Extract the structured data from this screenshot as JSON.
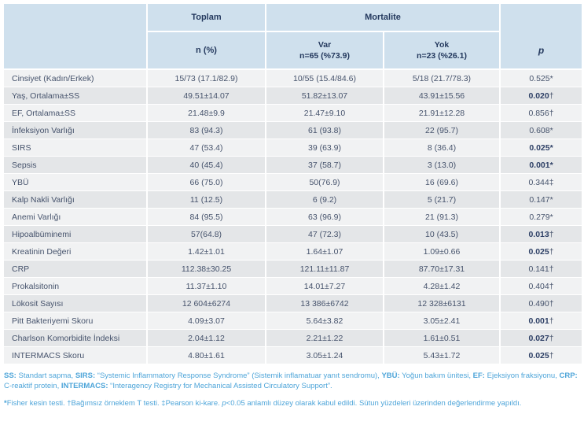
{
  "colors": {
    "header_bg": "#cfe0ed",
    "header_text": "#24395e",
    "body_text": "#46536c",
    "row_light": "#f1f2f3",
    "row_dark": "#e4e6e8",
    "footnote_blue": "#4ea5d9",
    "bold_value_text": "#2e4066"
  },
  "table": {
    "header": {
      "corner": "",
      "toplam": "Toplam",
      "mortalite": "Mortalite",
      "n_pct": "n (%)",
      "var_title": "Var",
      "var_sub": "n=65 (%73.9)",
      "yok_title": "Yok",
      "yok_sub": "n=23 (%26.1)",
      "p": "p"
    },
    "rows": [
      {
        "label": "Cinsiyet (Kadın/Erkek)",
        "toplam": "15/73 (17.1/82.9)",
        "var": "10/55 (15.4/84.6)",
        "yok": "5/18 (21.7/78.3)",
        "p": "0.525",
        "p_marker": "*",
        "p_bold": false
      },
      {
        "label": "Yaş, Ortalama±SS",
        "toplam": "49.51±14.07",
        "var": "51.82±13.07",
        "yok": "43.91±15.56",
        "p": "0.020",
        "p_marker": "†",
        "p_bold": true
      },
      {
        "label": "EF, Ortalama±SS",
        "toplam": "21.48±9.9",
        "var": "21.47±9.10",
        "yok": "21.91±12.28",
        "p": "0.856",
        "p_marker": "†",
        "p_bold": false
      },
      {
        "label": "İnfeksiyon Varlığı",
        "toplam": "83 (94.3)",
        "var": "61 (93.8)",
        "yok": "22 (95.7)",
        "p": "0.608",
        "p_marker": "*",
        "p_bold": false
      },
      {
        "label": "SIRS",
        "toplam": "47 (53.4)",
        "var": "39 (63.9)",
        "yok": "8 (36.4)",
        "p": "0.025",
        "p_marker": "*",
        "p_bold": true
      },
      {
        "label": "Sepsis",
        "toplam": "40 (45.4)",
        "var": "37 (58.7)",
        "yok": "3 (13.0)",
        "p": "0.001",
        "p_marker": "*",
        "p_bold": true
      },
      {
        "label": "YBÜ",
        "toplam": "66 (75.0)",
        "var": "50(76.9)",
        "yok": "16 (69.6)",
        "p": "0.344",
        "p_marker": "‡",
        "p_bold": false
      },
      {
        "label": "Kalp Nakli Varlığı",
        "toplam": "11 (12.5)",
        "var": "6 (9.2)",
        "yok": "5 (21.7)",
        "p": "0.147",
        "p_marker": "*",
        "p_bold": false
      },
      {
        "label": "Anemi Varlığı",
        "toplam": "84 (95.5)",
        "var": "63 (96.9)",
        "yok": "21 (91.3)",
        "p": "0.279",
        "p_marker": "*",
        "p_bold": false
      },
      {
        "label": "Hipoalbüminemi",
        "toplam": "57(64.8)",
        "var": "47 (72.3)",
        "yok": "10 (43.5)",
        "p": "0.013",
        "p_marker": "†",
        "p_bold": true
      },
      {
        "label": "Kreatinin Değeri",
        "toplam": "1.42±1.01",
        "var": "1.64±1.07",
        "yok": "1.09±0.66",
        "p": "0.025",
        "p_marker": "†",
        "p_bold": true
      },
      {
        "label": "CRP",
        "toplam": "112.38±30.25",
        "var": "121.11±11.87",
        "yok": "87.70±17.31",
        "p": "0.141",
        "p_marker": "†",
        "p_bold": false
      },
      {
        "label": "Prokalsitonin",
        "toplam": "11.37±1.10",
        "var": "14.01±7.27",
        "yok": "4.28±1.42",
        "p": "0.404",
        "p_marker": "†",
        "p_bold": false
      },
      {
        "label": "Lökosit Sayısı",
        "toplam": "12 604±6274",
        "var": "13 386±6742",
        "yok": "12 328±6131",
        "p": "0.490",
        "p_marker": "†",
        "p_bold": false
      },
      {
        "label": "Pitt Bakteriyemi Skoru",
        "toplam": "4.09±3.07",
        "var": "5.64±3.82",
        "yok": "3.05±2.41",
        "p": "0.001",
        "p_marker": "†",
        "p_bold": true
      },
      {
        "label": "Charlson Komorbidite İndeksi",
        "toplam": "2.04±1.12",
        "var": "2.21±1.22",
        "yok": "1.61±0.51",
        "p": "0.027",
        "p_marker": "†",
        "p_bold": true
      },
      {
        "label": "INTERMACS Skoru",
        "toplam": "4.80±1.61",
        "var": "3.05±1.24",
        "yok": "5.43±1.72",
        "p": "0.025",
        "p_marker": "†",
        "p_bold": true
      }
    ]
  },
  "footnotes": {
    "abbreviations": [
      {
        "text": "SS:",
        "bold": true
      },
      {
        "text": " Standart sapma, "
      },
      {
        "text": "SIRS:",
        "bold": true
      },
      {
        "text": " “Systemic Inflammatory Response Syndrome” (Sistemik inflamatuar yanıt sendromu), "
      },
      {
        "text": "YBÜ:",
        "bold": true
      },
      {
        "text": " Yoğun bakım ünitesi, "
      },
      {
        "text": "EF:",
        "bold": true
      },
      {
        "text": " Ejeksiyon fraksiyonu, "
      },
      {
        "text": "CRP:",
        "bold": true
      },
      {
        "text": " C-reaktif protein, "
      },
      {
        "text": "INTERMACS:",
        "bold": true
      },
      {
        "text": " “Interagency Registry for Mechanical Assisted Circulatory Support”."
      }
    ],
    "methods": [
      {
        "text": "*",
        "bold": true
      },
      {
        "text": "Fisher kesin testi. †Bağımsız örneklem T testi. ‡Pearson ki-kare. "
      },
      {
        "text": "p",
        "italic": true
      },
      {
        "text": "<0.05 anlamlı düzey olarak kabul edildi. Sütun yüzdeleri üzerinden değerlendirme yapıldı."
      }
    ]
  }
}
